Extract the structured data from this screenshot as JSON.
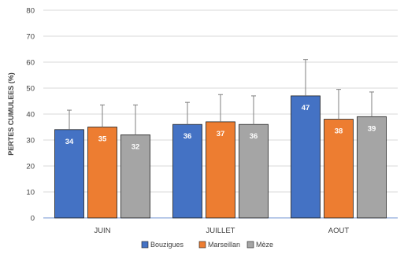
{
  "chart_data": {
    "type": "bar",
    "title": "",
    "xlabel": "",
    "ylabel": "PERTES CUMULEES (%)",
    "ylim": [
      0,
      80
    ],
    "yticks": [
      0,
      10,
      20,
      30,
      40,
      50,
      60,
      70,
      80
    ],
    "grid": true,
    "legend_position": "bottom",
    "error_bars": true,
    "categories": [
      "JUIN",
      "JUILLET",
      "AOUT"
    ],
    "series": [
      {
        "name": "Bouzigues",
        "color": "#4472c4",
        "values": [
          34,
          36,
          47
        ],
        "labels": [
          "34",
          "36",
          "47"
        ],
        "error_upper": [
          41.5,
          44.5,
          61
        ]
      },
      {
        "name": "Marseillan",
        "color": "#ed7d31",
        "values": [
          35,
          37,
          38
        ],
        "labels": [
          "35",
          "37",
          "38"
        ],
        "error_upper": [
          43.5,
          47.5,
          49.5
        ]
      },
      {
        "name": "Mèze",
        "color": "#a5a5a5",
        "values": [
          32,
          36,
          39
        ],
        "labels": [
          "32",
          "36",
          "39"
        ],
        "error_upper": [
          43.5,
          47,
          48.5
        ]
      }
    ]
  }
}
